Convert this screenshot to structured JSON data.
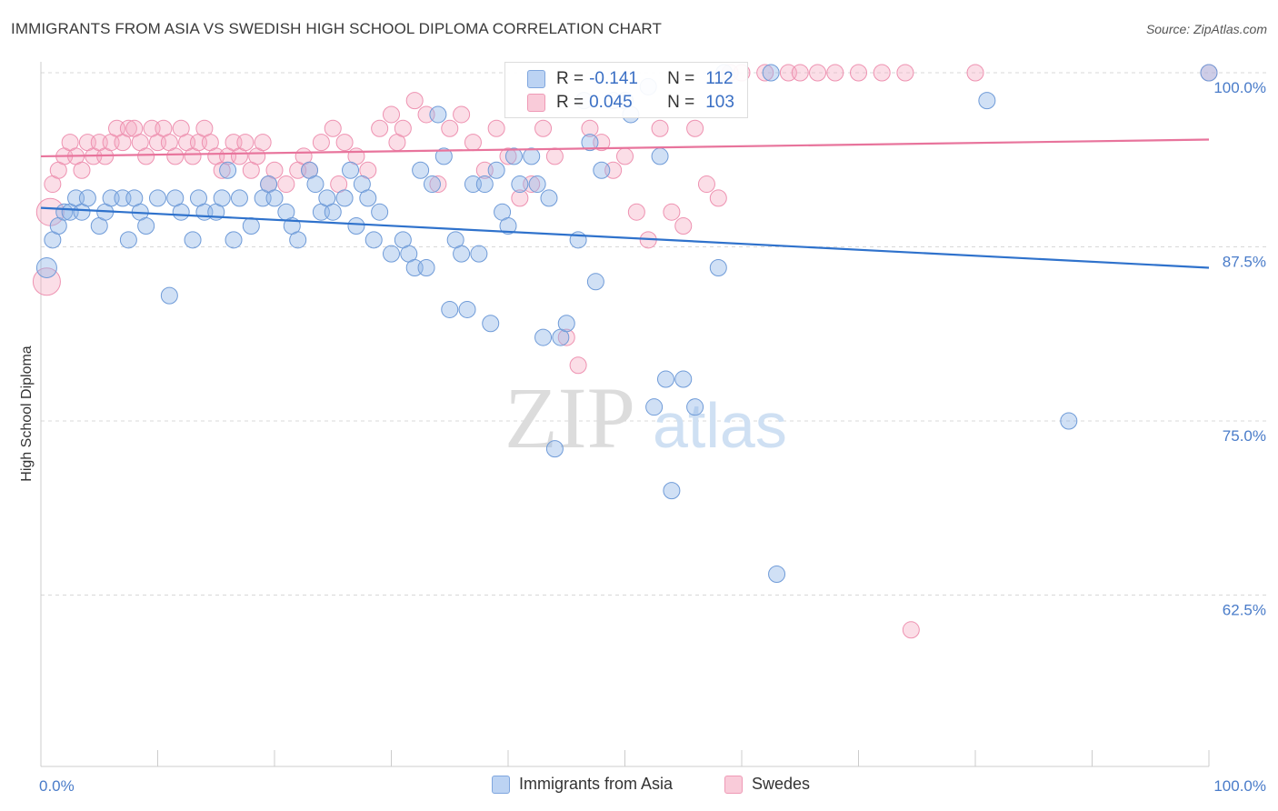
{
  "title": "IMMIGRANTS FROM ASIA VS SWEDISH HIGH SCHOOL DIPLOMA CORRELATION CHART",
  "source": "Source: ZipAtlas.com",
  "watermark": {
    "zip": "ZIP",
    "atlas": "atlas"
  },
  "colors": {
    "blue": "#8fb4e8",
    "blue_line": "#2f72cc",
    "pink": "#f4a7c0",
    "pink_line": "#e8749c",
    "tick": "#4a7cc9"
  },
  "legend": {
    "series": [
      {
        "r_label": "R =",
        "r_value": "-0.141",
        "n_label": "N =",
        "n_value": "112"
      },
      {
        "r_label": "R =",
        "r_value": "0.045",
        "n_label": "N =",
        "n_value": "103"
      }
    ]
  },
  "chart_data": {
    "type": "scatter",
    "title": "IMMIGRANTS FROM ASIA VS SWEDISH HIGH SCHOOL DIPLOMA CORRELATION CHART",
    "xlabel": "",
    "ylabel": "High School Diploma",
    "xlim": [
      0,
      100
    ],
    "ylim": [
      50,
      102
    ],
    "x_tick_labels": [
      "0.0%",
      "100.0%"
    ],
    "y_ticks": [
      62.5,
      75.0,
      87.5,
      100.0
    ],
    "y_tick_labels": [
      "62.5%",
      "75.0%",
      "87.5%",
      "100.0%"
    ],
    "grid": "horizontal dashed",
    "legend_position": "top-center",
    "series": [
      {
        "name": "Immigrants from Asia",
        "trend": {
          "x": [
            0,
            100
          ],
          "y": [
            90.3,
            86.0
          ]
        },
        "points": [
          [
            0.5,
            86
          ],
          [
            1,
            88
          ],
          [
            1.5,
            89
          ],
          [
            2,
            90
          ],
          [
            2.5,
            90
          ],
          [
            3,
            91
          ],
          [
            3.5,
            90
          ],
          [
            4,
            91
          ],
          [
            5,
            89
          ],
          [
            5.5,
            90
          ],
          [
            6,
            91
          ],
          [
            7,
            91
          ],
          [
            7.5,
            88
          ],
          [
            8,
            91
          ],
          [
            8.5,
            90
          ],
          [
            9,
            89
          ],
          [
            10,
            91
          ],
          [
            11,
            84
          ],
          [
            11.5,
            91
          ],
          [
            12,
            90
          ],
          [
            13,
            88
          ],
          [
            13.5,
            91
          ],
          [
            14,
            90
          ],
          [
            15,
            90
          ],
          [
            15.5,
            91
          ],
          [
            16,
            93
          ],
          [
            16.5,
            88
          ],
          [
            17,
            91
          ],
          [
            18,
            89
          ],
          [
            19,
            91
          ],
          [
            19.5,
            92
          ],
          [
            20,
            91
          ],
          [
            21,
            90
          ],
          [
            21.5,
            89
          ],
          [
            22,
            88
          ],
          [
            23,
            93
          ],
          [
            23.5,
            92
          ],
          [
            24,
            90
          ],
          [
            24.5,
            91
          ],
          [
            25,
            90
          ],
          [
            26,
            91
          ],
          [
            26.5,
            93
          ],
          [
            27,
            89
          ],
          [
            27.5,
            92
          ],
          [
            28,
            91
          ],
          [
            28.5,
            88
          ],
          [
            29,
            90
          ],
          [
            30,
            87
          ],
          [
            31,
            88
          ],
          [
            31.5,
            87
          ],
          [
            32,
            86
          ],
          [
            32.5,
            93
          ],
          [
            33,
            86
          ],
          [
            33.5,
            92
          ],
          [
            34,
            97
          ],
          [
            34.5,
            94
          ],
          [
            35,
            83
          ],
          [
            35.5,
            88
          ],
          [
            36,
            87
          ],
          [
            36.5,
            83
          ],
          [
            37,
            92
          ],
          [
            37.5,
            87
          ],
          [
            38,
            92
          ],
          [
            38.5,
            82
          ],
          [
            39,
            93
          ],
          [
            39.5,
            90
          ],
          [
            40,
            89
          ],
          [
            40.5,
            94
          ],
          [
            41,
            92
          ],
          [
            42,
            94
          ],
          [
            42.5,
            92
          ],
          [
            43,
            81
          ],
          [
            43.5,
            91
          ],
          [
            44,
            73
          ],
          [
            44.5,
            81
          ],
          [
            45,
            82
          ],
          [
            46,
            88
          ],
          [
            46.5,
            98
          ],
          [
            47,
            95
          ],
          [
            47.5,
            85
          ],
          [
            48,
            93
          ],
          [
            49,
            98
          ],
          [
            50,
            98
          ],
          [
            50.5,
            97
          ],
          [
            52,
            99
          ],
          [
            52.5,
            76
          ],
          [
            53,
            94
          ],
          [
            53.5,
            78
          ],
          [
            54,
            70
          ],
          [
            55,
            78
          ],
          [
            56,
            76
          ],
          [
            58,
            86
          ],
          [
            58.5,
            100
          ],
          [
            62.5,
            100
          ],
          [
            63,
            64
          ],
          [
            81,
            98
          ],
          [
            88,
            75
          ],
          [
            100,
            100
          ]
        ]
      },
      {
        "name": "Swedes",
        "trend": {
          "x": [
            0,
            100
          ],
          "y": [
            94.0,
            95.2
          ]
        },
        "points": [
          [
            0.5,
            85
          ],
          [
            0.8,
            90
          ],
          [
            1,
            92
          ],
          [
            1.5,
            93
          ],
          [
            2,
            94
          ],
          [
            2.5,
            95
          ],
          [
            3,
            94
          ],
          [
            3.5,
            93
          ],
          [
            4,
            95
          ],
          [
            4.5,
            94
          ],
          [
            5,
            95
          ],
          [
            5.5,
            94
          ],
          [
            6,
            95
          ],
          [
            6.5,
            96
          ],
          [
            7,
            95
          ],
          [
            7.5,
            96
          ],
          [
            8,
            96
          ],
          [
            8.5,
            95
          ],
          [
            9,
            94
          ],
          [
            9.5,
            96
          ],
          [
            10,
            95
          ],
          [
            10.5,
            96
          ],
          [
            11,
            95
          ],
          [
            11.5,
            94
          ],
          [
            12,
            96
          ],
          [
            12.5,
            95
          ],
          [
            13,
            94
          ],
          [
            13.5,
            95
          ],
          [
            14,
            96
          ],
          [
            14.5,
            95
          ],
          [
            15,
            94
          ],
          [
            15.5,
            93
          ],
          [
            16,
            94
          ],
          [
            16.5,
            95
          ],
          [
            17,
            94
          ],
          [
            17.5,
            95
          ],
          [
            18,
            93
          ],
          [
            18.5,
            94
          ],
          [
            19,
            95
          ],
          [
            19.5,
            92
          ],
          [
            20,
            93
          ],
          [
            21,
            92
          ],
          [
            22,
            93
          ],
          [
            22.5,
            94
          ],
          [
            23,
            93
          ],
          [
            24,
            95
          ],
          [
            25,
            96
          ],
          [
            25.5,
            92
          ],
          [
            26,
            95
          ],
          [
            27,
            94
          ],
          [
            28,
            93
          ],
          [
            29,
            96
          ],
          [
            30,
            97
          ],
          [
            30.5,
            95
          ],
          [
            31,
            96
          ],
          [
            32,
            98
          ],
          [
            33,
            97
          ],
          [
            34,
            92
          ],
          [
            35,
            96
          ],
          [
            36,
            97
          ],
          [
            37,
            95
          ],
          [
            38,
            93
          ],
          [
            39,
            96
          ],
          [
            40,
            94
          ],
          [
            41,
            91
          ],
          [
            42,
            92
          ],
          [
            43,
            96
          ],
          [
            44,
            94
          ],
          [
            45,
            81
          ],
          [
            46,
            79
          ],
          [
            47,
            96
          ],
          [
            48,
            95
          ],
          [
            49,
            93
          ],
          [
            50,
            94
          ],
          [
            51,
            90
          ],
          [
            52,
            88
          ],
          [
            53,
            96
          ],
          [
            54,
            90
          ],
          [
            55,
            89
          ],
          [
            56,
            96
          ],
          [
            57,
            92
          ],
          [
            58,
            91
          ],
          [
            59,
            100
          ],
          [
            60,
            100
          ],
          [
            62,
            100
          ],
          [
            64,
            100
          ],
          [
            65,
            100
          ],
          [
            68,
            100
          ],
          [
            70,
            100
          ],
          [
            72,
            100
          ],
          [
            74,
            100
          ],
          [
            74.5,
            60
          ],
          [
            80,
            100
          ],
          [
            66.5,
            100
          ],
          [
            100,
            100
          ]
        ]
      }
    ]
  }
}
